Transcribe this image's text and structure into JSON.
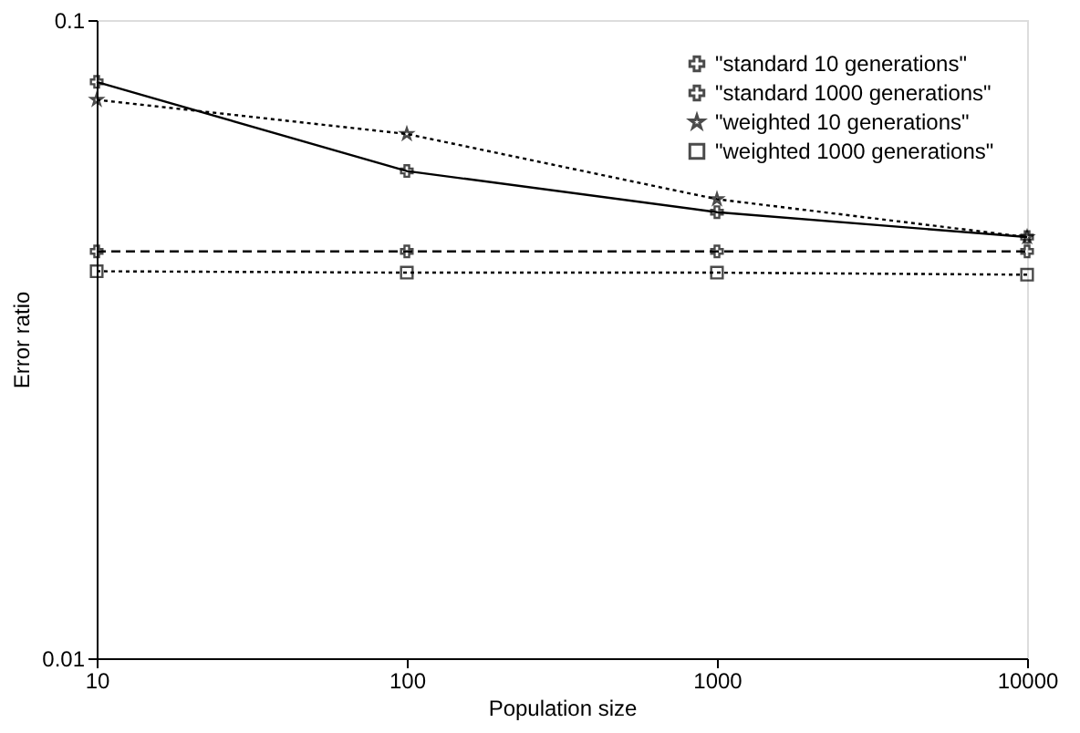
{
  "chart_data": {
    "type": "line",
    "xlabel": "Population size",
    "ylabel": "Error ratio",
    "log": "xy",
    "x": [
      10,
      100,
      1000,
      10000
    ],
    "xlim": [
      10,
      10000
    ],
    "xticks": [
      10,
      100,
      1000,
      10000
    ],
    "ylim": [
      0.01,
      0.1
    ],
    "yticks": [
      0.01,
      0.1
    ],
    "grid": false,
    "legend": "top right",
    "series": [
      {
        "name": "\"standard 10 generations\"",
        "color": "#000000",
        "values": [
          0.08,
          0.058,
          0.05,
          0.0457
        ],
        "marker": "cross",
        "line_style": "solid"
      },
      {
        "name": "\"standard 1000 generations\"",
        "color": "#000000",
        "values": [
          0.0434,
          0.0434,
          0.0434,
          0.0434
        ],
        "marker": "cross",
        "line_style": "dashed"
      },
      {
        "name": "\"weighted 10 generations\"",
        "color": "#000000",
        "values": [
          0.075,
          0.0663,
          0.0524,
          0.0457
        ],
        "marker": "star",
        "line_style": "dotted"
      },
      {
        "name": "\"weighted 1000 generations\"",
        "color": "#000000",
        "values": [
          0.0404,
          0.0402,
          0.0402,
          0.0399
        ],
        "marker": "square",
        "line_style": "dotted"
      }
    ]
  }
}
